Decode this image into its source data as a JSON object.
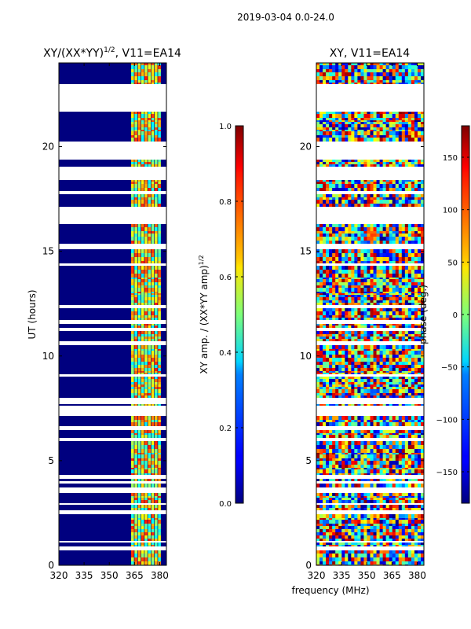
{
  "figure": {
    "suptitle": "2019-03-04 0.0-24.0",
    "shared_xlabel": "frequency (MHz)"
  },
  "chart_data": [
    {
      "type": "heatmap",
      "title_main": "XY/(XX*YY)",
      "title_sup": "1/2",
      "title_tail": ", V11=EA14",
      "ylabel": "UT (hours)",
      "xlim": [
        320,
        384
      ],
      "ylim": [
        0,
        24
      ],
      "xticks": [
        "320",
        "335",
        "350",
        "365",
        "380"
      ],
      "yticks": [
        "0",
        "5",
        "10",
        "15",
        "20"
      ],
      "colorbar": {
        "label_main": "XY amp. / (XX*YY amp)",
        "label_sup": "1/2",
        "range": [
          0.0,
          1.0
        ],
        "ticks": [
          "0.0",
          "0.2",
          "0.4",
          "0.6",
          "0.8",
          "1.0"
        ],
        "colormap": "jet"
      }
    },
    {
      "type": "heatmap",
      "title": "XY, V11=EA14",
      "xlim": [
        320,
        384
      ],
      "ylim": [
        0,
        24
      ],
      "xticks": [
        "320",
        "335",
        "350",
        "365",
        "380"
      ],
      "yticks": [
        "0",
        "5",
        "10",
        "15",
        "20"
      ],
      "colorbar": {
        "label": "phase (deg.)",
        "range": [
          -180,
          180
        ],
        "ticks": [
          "−150",
          "−100",
          "−50",
          "0",
          "50",
          "100",
          "150"
        ],
        "colormap": "jet"
      }
    }
  ]
}
